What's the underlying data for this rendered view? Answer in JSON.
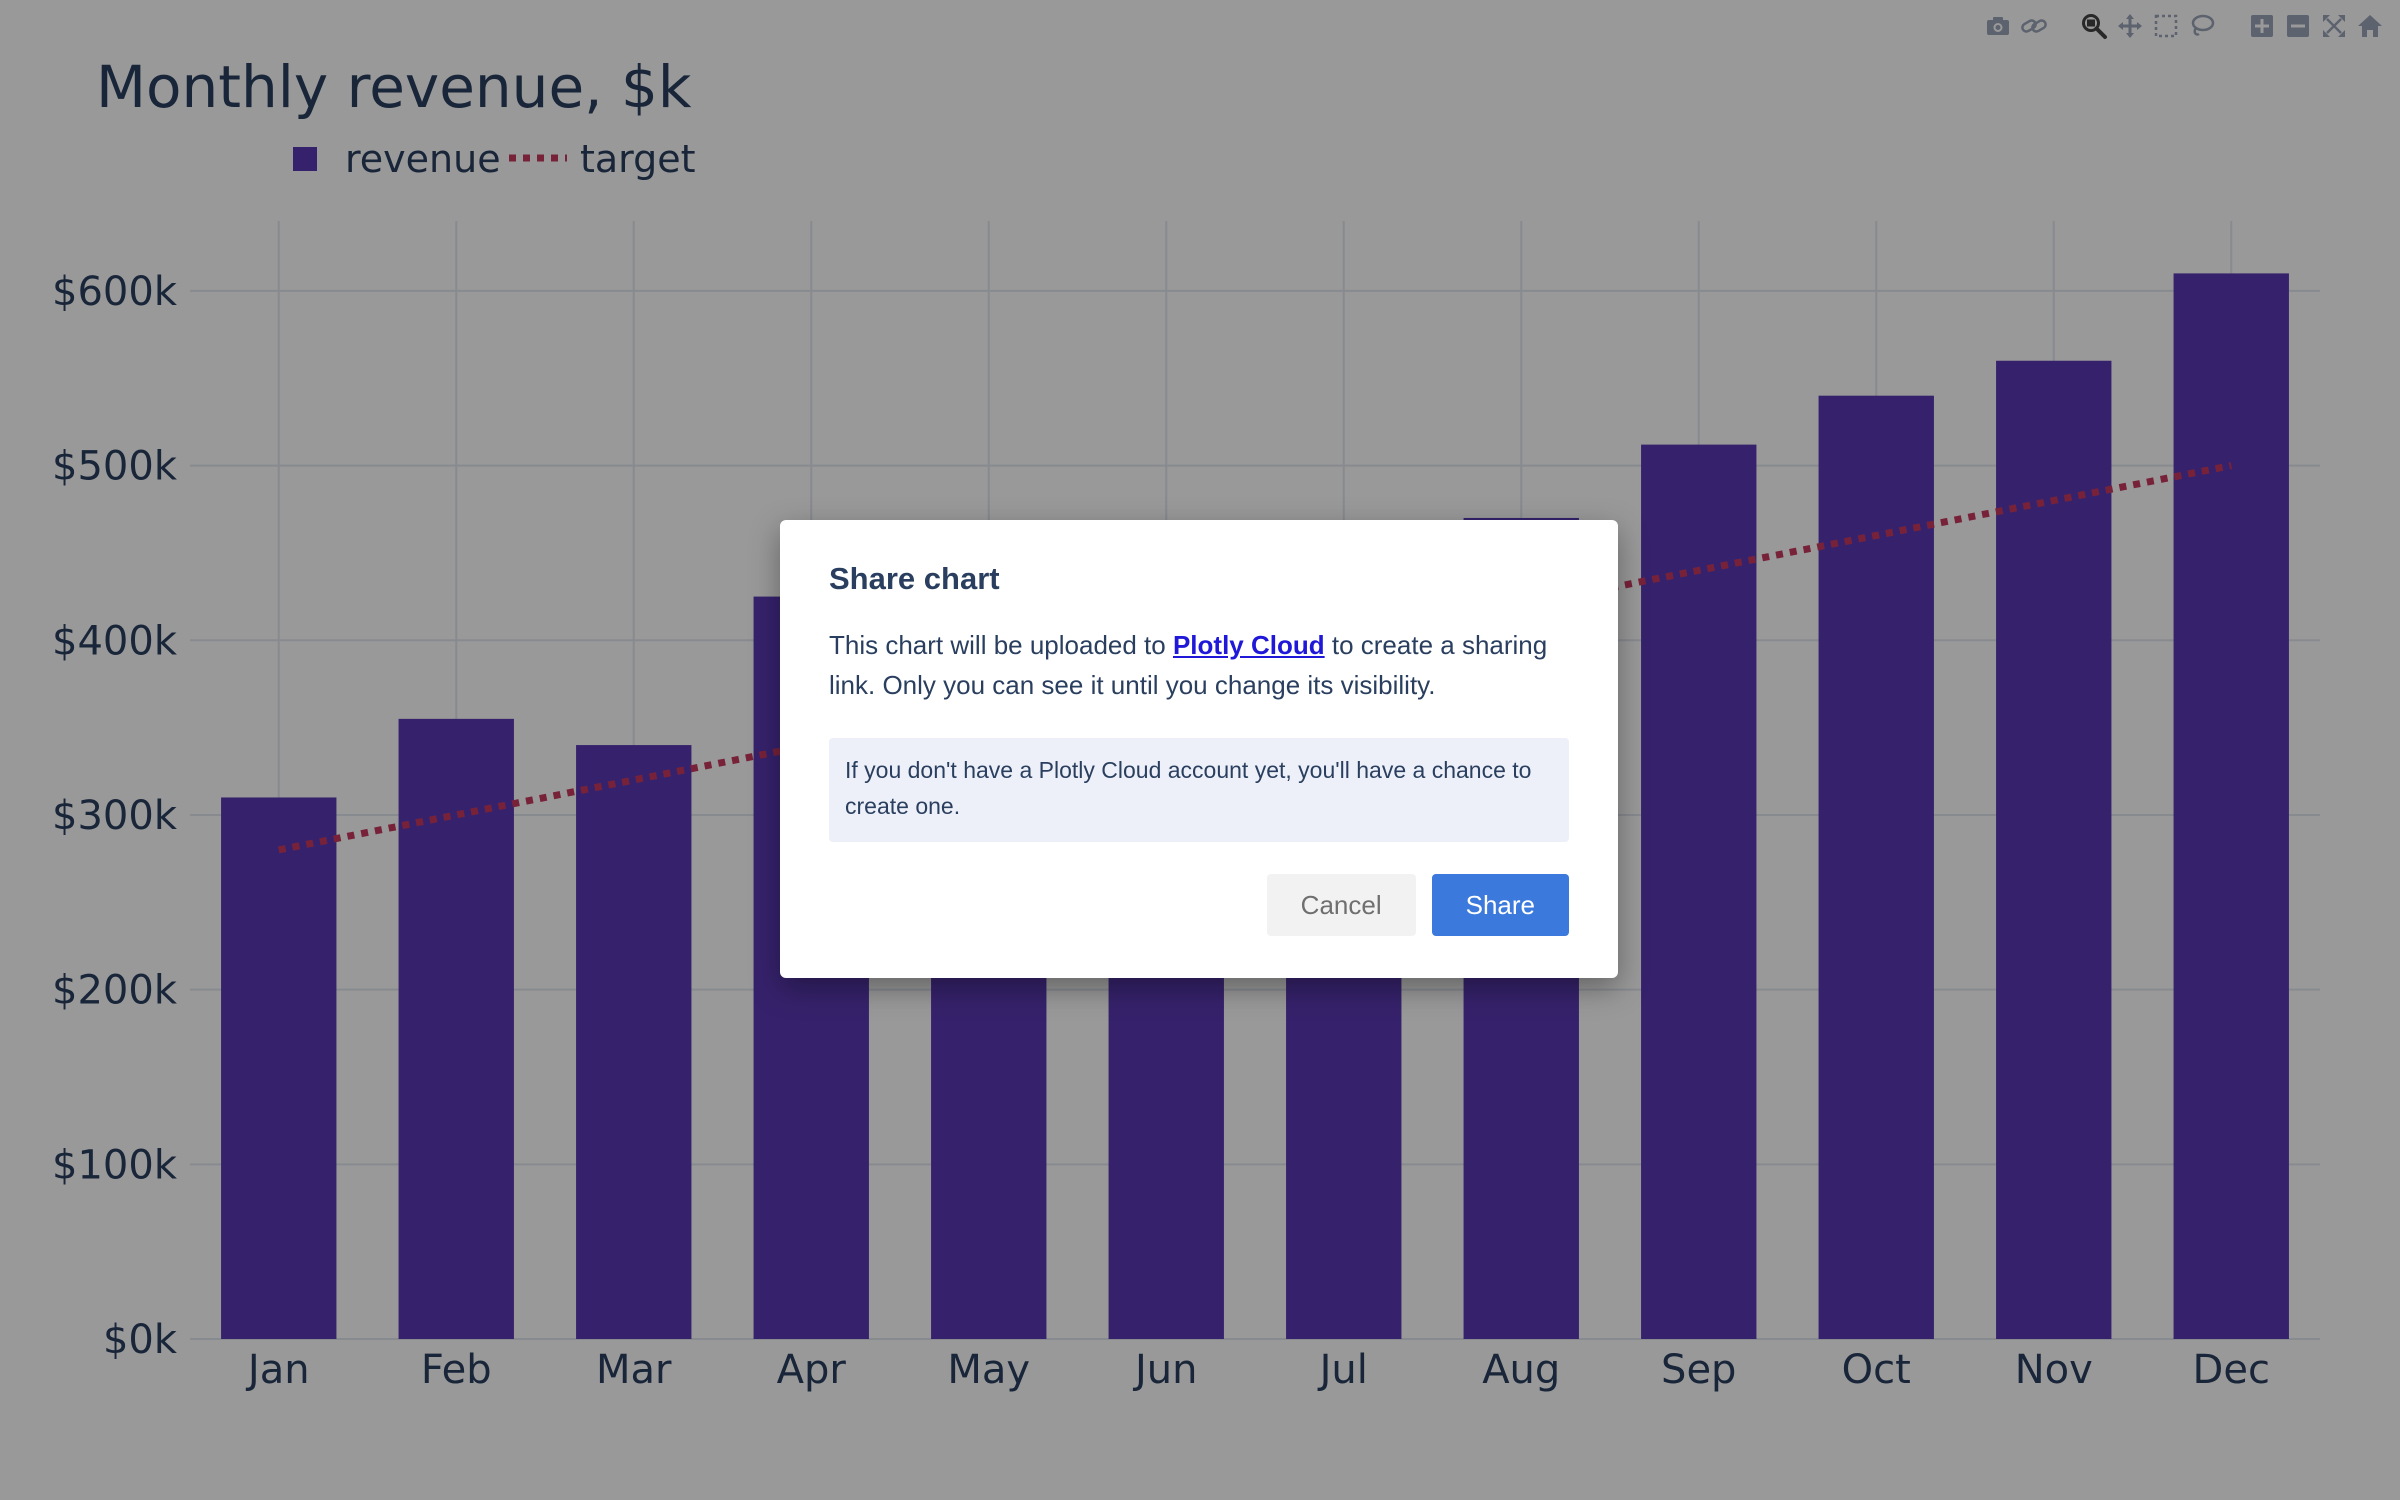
{
  "chart_data": {
    "type": "bar",
    "title": "Monthly revenue, $k",
    "categories": [
      "Jan",
      "Feb",
      "Mar",
      "Apr",
      "May",
      "Jun",
      "Jul",
      "Aug",
      "Sep",
      "Oct",
      "Nov",
      "Dec"
    ],
    "series": [
      {
        "name": "revenue",
        "type": "bar",
        "values": [
          310,
          355,
          340,
          425,
          450,
          455,
          460,
          470,
          512,
          540,
          560,
          610
        ]
      },
      {
        "name": "target",
        "type": "line",
        "values": [
          280,
          300,
          320,
          340,
          360,
          380,
          400,
          420,
          440,
          460,
          480,
          500
        ]
      }
    ],
    "ylim": [
      0,
      640
    ],
    "yticks": [
      {
        "value": 0,
        "label": "$0k"
      },
      {
        "value": 100,
        "label": "$100k"
      },
      {
        "value": 200,
        "label": "$200k"
      },
      {
        "value": 300,
        "label": "$300k"
      },
      {
        "value": 400,
        "label": "$400k"
      },
      {
        "value": 500,
        "label": "$500k"
      },
      {
        "value": 600,
        "label": "$600k"
      }
    ],
    "grid": true,
    "legend": "top-left",
    "colors": {
      "revenue": "#5b3ab5",
      "target": "#c9395f",
      "grid": "#e1e6ef",
      "text": "#2a3f5f"
    }
  },
  "modebar": {
    "groups": [
      [
        {
          "icon": "camera-icon"
        },
        {
          "icon": "link-icon"
        }
      ],
      [
        {
          "icon": "zoom-icon",
          "active": true
        },
        {
          "icon": "pan-icon"
        },
        {
          "icon": "box-select-icon"
        },
        {
          "icon": "lasso-icon"
        }
      ],
      [
        {
          "icon": "zoom-in-icon"
        },
        {
          "icon": "zoom-out-icon"
        },
        {
          "icon": "autoscale-icon"
        },
        {
          "icon": "reset-axes-icon"
        }
      ]
    ]
  },
  "dialog": {
    "title": "Share chart",
    "body_before": "This chart will be uploaded to ",
    "link_text": "Plotly Cloud",
    "body_after": " to create a sharing link. Only you can see it until you change its visibility.",
    "note": "If you don't have a Plotly Cloud account yet, you'll have a chance to create one.",
    "cancel_label": "Cancel",
    "share_label": "Share"
  }
}
